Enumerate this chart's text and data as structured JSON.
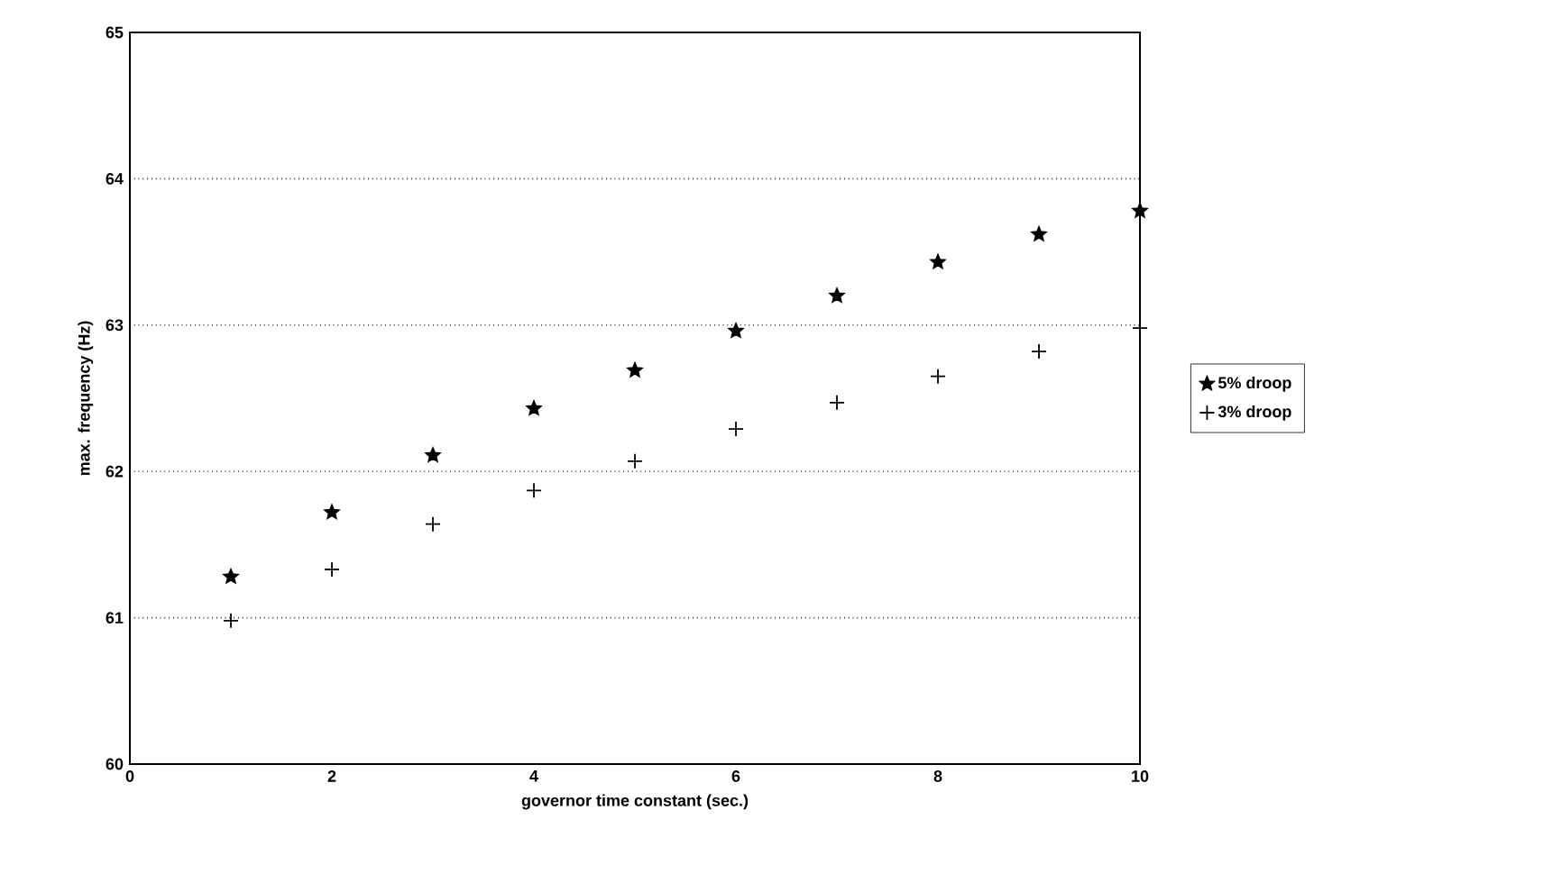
{
  "chart_data": {
    "type": "scatter",
    "xlabel": "governor time constant (sec.)",
    "ylabel": "max. frequency (Hz)",
    "x": [
      1,
      2,
      3,
      4,
      5,
      6,
      7,
      8,
      9,
      10
    ],
    "series": [
      {
        "name": "5% droop",
        "color": "#000000",
        "marker": "star",
        "values": [
          61.28,
          61.72,
          62.11,
          62.43,
          62.69,
          62.96,
          63.2,
          63.43,
          63.62,
          63.78
        ]
      },
      {
        "name": "3% droop",
        "color": "#000000",
        "marker": "cross",
        "values": [
          60.98,
          61.33,
          61.64,
          61.87,
          62.07,
          62.29,
          62.47,
          62.65,
          62.82,
          62.98
        ]
      }
    ],
    "xlim": [
      0,
      10
    ],
    "ylim": [
      60,
      65
    ],
    "xticks": [
      0,
      2,
      4,
      6,
      8,
      10
    ],
    "yticks": [
      60,
      61,
      62,
      63,
      64,
      65
    ],
    "grid": "y",
    "legend": "right"
  }
}
